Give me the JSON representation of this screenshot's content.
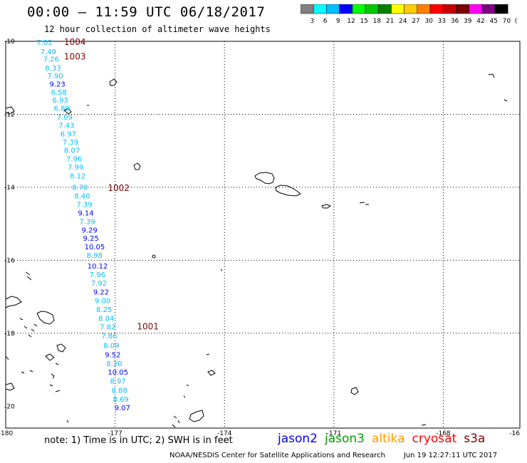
{
  "header": {
    "title": "00:00 – 11:59 UTC 06/18/2017",
    "subtitle": "12 hour collection of altimeter wave heights"
  },
  "scale": {
    "colors": [
      "#808080",
      "#00ffff",
      "#00bfff",
      "#0000ff",
      "#00ff00",
      "#00c800",
      "#008200",
      "#ffff00",
      "#ffcc00",
      "#ff8000",
      "#ff0000",
      "#c80000",
      "#800000",
      "#ff00ff",
      "#800080",
      "#000000"
    ],
    "labels": [
      "3",
      "6",
      "9",
      "12",
      "15",
      "18",
      "21",
      "24",
      "27",
      "30",
      "33",
      "36",
      "39",
      "42",
      "45",
      "70",
      "(ft)"
    ]
  },
  "map": {
    "lat_labels": [
      "-10",
      "-12",
      "-14",
      "-16",
      "-18",
      "-20"
    ],
    "lon_labels": [
      "-180",
      "-177",
      "-174",
      "-171",
      "-168",
      "-16"
    ],
    "pass_labels": [
      {
        "text": "1004",
        "lat": -10.0,
        "lon": -178.4
      },
      {
        "text": "1003",
        "lat": -10.4,
        "lon": -178.4
      },
      {
        "text": "1002",
        "lat": -14.0,
        "lon": -177.2
      },
      {
        "text": "1001",
        "lat": -17.8,
        "lon": -176.4
      }
    ],
    "track": [
      {
        "v": "7.02",
        "lat": -10.02,
        "lon": -179.15,
        "c": "#00bfff"
      },
      {
        "v": "7.49",
        "lat": -10.27,
        "lon": -179.05,
        "c": "#00bfff"
      },
      {
        "v": "7.26",
        "lat": -10.48,
        "lon": -178.97,
        "c": "#00bfff"
      },
      {
        "v": "8.33",
        "lat": -10.72,
        "lon": -178.92,
        "c": "#00bfff"
      },
      {
        "v": "7.90",
        "lat": -10.94,
        "lon": -178.86,
        "c": "#00bfff"
      },
      {
        "v": "9.23",
        "lat": -11.16,
        "lon": -178.8,
        "c": "#0000ff"
      },
      {
        "v": "6.58",
        "lat": -11.39,
        "lon": -178.76,
        "c": "#00bfff"
      },
      {
        "v": "6.93",
        "lat": -11.6,
        "lon": -178.72,
        "c": "#00bfff"
      },
      {
        "v": "6.89",
        "lat": -11.83,
        "lon": -178.68,
        "c": "#00bfff"
      },
      {
        "v": "7.09",
        "lat": -12.07,
        "lon": -178.6,
        "c": "#00bfff"
      },
      {
        "v": "7.43",
        "lat": -12.29,
        "lon": -178.55,
        "c": "#00bfff"
      },
      {
        "v": "6.97",
        "lat": -12.53,
        "lon": -178.5,
        "c": "#00bfff"
      },
      {
        "v": "7.39",
        "lat": -12.75,
        "lon": -178.44,
        "c": "#00bfff"
      },
      {
        "v": "8.07",
        "lat": -12.98,
        "lon": -178.4,
        "c": "#00bfff"
      },
      {
        "v": "7.96",
        "lat": -13.21,
        "lon": -178.34,
        "c": "#00bfff"
      },
      {
        "v": "7.99",
        "lat": -13.44,
        "lon": -178.3,
        "c": "#00bfff"
      },
      {
        "v": "8.12",
        "lat": -13.68,
        "lon": -178.24,
        "c": "#00bfff"
      },
      {
        "v": "8.70",
        "lat": -13.99,
        "lon": -178.18,
        "c": "#00bfff"
      },
      {
        "v": "8.40",
        "lat": -14.23,
        "lon": -178.12,
        "c": "#00bfff"
      },
      {
        "v": "7.39",
        "lat": -14.46,
        "lon": -178.06,
        "c": "#00bfff"
      },
      {
        "v": "9.14",
        "lat": -14.69,
        "lon": -178.02,
        "c": "#0000ff"
      },
      {
        "v": "7.39",
        "lat": -14.93,
        "lon": -177.98,
        "c": "#00bfff"
      },
      {
        "v": "9.29",
        "lat": -15.16,
        "lon": -177.92,
        "c": "#0000ff"
      },
      {
        "v": "9.25",
        "lat": -15.39,
        "lon": -177.88,
        "c": "#0000ff"
      },
      {
        "v": "10.05",
        "lat": -15.62,
        "lon": -177.84,
        "c": "#0000ff"
      },
      {
        "v": "8.98",
        "lat": -15.86,
        "lon": -177.78,
        "c": "#00bfff"
      },
      {
        "v": "10.12",
        "lat": -16.15,
        "lon": -177.76,
        "c": "#0000ff"
      },
      {
        "v": "7.96",
        "lat": -16.38,
        "lon": -177.7,
        "c": "#00bfff"
      },
      {
        "v": "7.92",
        "lat": -16.62,
        "lon": -177.66,
        "c": "#00bfff"
      },
      {
        "v": "9.22",
        "lat": -16.86,
        "lon": -177.6,
        "c": "#0000ff"
      },
      {
        "v": "9.00",
        "lat": -17.1,
        "lon": -177.56,
        "c": "#00bfff"
      },
      {
        "v": "8.25",
        "lat": -17.34,
        "lon": -177.52,
        "c": "#00bfff"
      },
      {
        "v": "8.04",
        "lat": -17.58,
        "lon": -177.46,
        "c": "#00bfff"
      },
      {
        "v": "7.82",
        "lat": -17.82,
        "lon": -177.42,
        "c": "#00bfff"
      },
      {
        "v": "7.86",
        "lat": -18.06,
        "lon": -177.38,
        "c": "#00bfff"
      },
      {
        "v": "8.09",
        "lat": -18.33,
        "lon": -177.32,
        "c": "#00bfff"
      },
      {
        "v": "9.52",
        "lat": -18.58,
        "lon": -177.28,
        "c": "#0000ff"
      },
      {
        "v": "8.20",
        "lat": -18.82,
        "lon": -177.24,
        "c": "#00bfff"
      },
      {
        "v": "10.05",
        "lat": -19.06,
        "lon": -177.2,
        "c": "#0000ff"
      },
      {
        "v": "8.97",
        "lat": -19.3,
        "lon": -177.14,
        "c": "#00bfff"
      },
      {
        "v": "8.88",
        "lat": -19.56,
        "lon": -177.1,
        "c": "#00bfff"
      },
      {
        "v": "8.69",
        "lat": -19.8,
        "lon": -177.06,
        "c": "#00bfff"
      },
      {
        "v": "9.07",
        "lat": -20.03,
        "lon": -177.02,
        "c": "#0000ff"
      }
    ]
  },
  "footer": {
    "note": "note:  1) Time is in UTC;  2) SWH is in feet",
    "satellites": [
      {
        "name": "jason2",
        "color": "#0000ff"
      },
      {
        "name": "jason3",
        "color": "#00a000"
      },
      {
        "name": "altika",
        "color": "#ff9900"
      },
      {
        "name": "cryosat",
        "color": "#ff0000"
      },
      {
        "name": "s3a",
        "color": "#800000"
      }
    ],
    "credit": "NOAA/NESDIS Center for Satellite Applications and Research",
    "timestamp": "Jun 19 12:27:11 UTC 2017"
  }
}
